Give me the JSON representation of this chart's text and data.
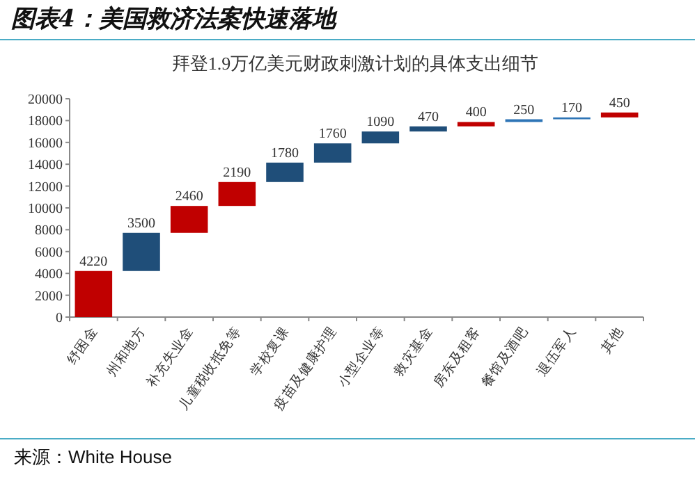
{
  "chart_data": {
    "type": "bar",
    "title": "图表4：美国救济法案快速落地",
    "subtitle": "拜登1.9万亿美元财政刺激计划的具体支出细节",
    "categories": [
      "纾困金",
      "州和地方",
      "补充失业金",
      "儿童税收抵免等",
      "学校复课",
      "疫苗及健康护理",
      "小型企业等",
      "救灾基金",
      "房东及租客",
      "餐馆及酒吧",
      "退伍军人",
      "其他"
    ],
    "values": [
      4220,
      3500,
      2460,
      2190,
      1780,
      1760,
      1090,
      470,
      400,
      250,
      170,
      450
    ],
    "base": [
      0,
      4220,
      7720,
      10180,
      12370,
      14150,
      15910,
      17000,
      17470,
      17870,
      18120,
      18290
    ],
    "colors": [
      "#c00000",
      "#1f4e79",
      "#c00000",
      "#c00000",
      "#1f4e79",
      "#1f4e79",
      "#1f4e79",
      "#1f4e79",
      "#c00000",
      "#2e75b6",
      "#2e75b6",
      "#c00000"
    ],
    "ylim": [
      0,
      20000
    ],
    "yticks": [
      0,
      2000,
      4000,
      6000,
      8000,
      10000,
      12000,
      14000,
      16000,
      18000,
      20000
    ],
    "data_labels": true,
    "grid": false,
    "annotations": [
      "来源：White House"
    ]
  }
}
